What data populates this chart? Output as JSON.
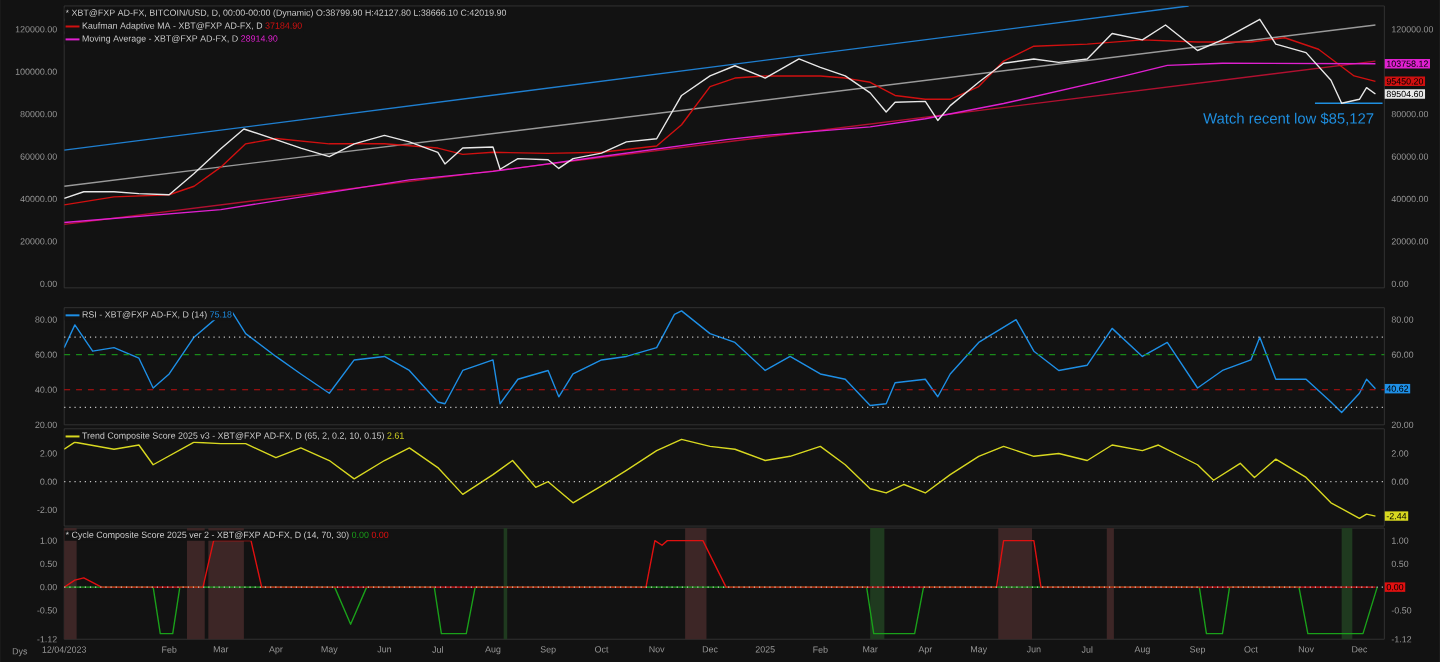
{
  "chart_data": [
    {
      "type": "line",
      "title": "* XBT@FXP AD-FX, BITCOIN/USD, D, 00:00-00:00 (Dynamic) O:38799.90 H:42127.80 L:38666.10 C:42019.90",
      "xlim": [
        "2023-12-04",
        "2025-12-15"
      ],
      "ylim": [
        -1900,
        131000
      ],
      "yticks": [
        {
          "value": 0,
          "label": "0.00"
        },
        {
          "value": 20000,
          "label": "20000.00"
        },
        {
          "value": 40000,
          "label": "40000.00"
        },
        {
          "value": 60000,
          "label": "60000.00"
        },
        {
          "value": 80000,
          "label": "80000.00"
        },
        {
          "value": 100000,
          "label": "100000.00"
        },
        {
          "value": 120000,
          "label": "120000.00"
        }
      ],
      "y2lim": [
        -1900,
        131000
      ],
      "y2ticks": [
        {
          "value": 0,
          "label": "0.00"
        },
        {
          "value": 20000,
          "label": "20000.00"
        },
        {
          "value": 40000,
          "label": "40000.00"
        },
        {
          "value": 60000,
          "label": "60000.00"
        },
        {
          "value": 80000,
          "label": "80000.00"
        },
        {
          "value": 120000,
          "label": "120000.00"
        }
      ],
      "tick_labels": "y",
      "legend": "top left",
      "series": [
        {
          "color": "#1f7fd0",
          "x": [
            "2023-12-04",
            "2025-08-27"
          ],
          "values": [
            63000,
            131000
          ]
        },
        {
          "color": "#9a9a9a",
          "x": [
            "2023-12-04",
            "2025-12-10"
          ],
          "values": [
            46000,
            122000
          ]
        },
        {
          "color": "#b01030",
          "x": [
            "2023-12-04",
            "2025-12-10"
          ],
          "values": [
            28000,
            105000
          ]
        },
        {
          "color": "#1f8fe0",
          "x": [
            "2025-11-06",
            "2025-12-14"
          ],
          "values": [
            85127,
            85127
          ]
        },
        {
          "name": "Kaufman Adaptive MA - XBT@FXP AD-FX, D",
          "color": "#d01010",
          "x": [
            "2023-12-04",
            "2024-01-01",
            "2024-02-01",
            "2024-02-15",
            "2024-03-01",
            "2024-03-15",
            "2024-04-01",
            "2024-05-01",
            "2024-06-01",
            "2024-07-01",
            "2024-07-15",
            "2024-08-01",
            "2024-09-01",
            "2024-10-01",
            "2024-11-01",
            "2024-11-15",
            "2024-12-01",
            "2024-12-15",
            "2025-01-01",
            "2025-02-01",
            "2025-02-15",
            "2025-03-01",
            "2025-03-15",
            "2025-04-01",
            "2025-04-15",
            "2025-05-01",
            "2025-05-15",
            "2025-06-01",
            "2025-07-01",
            "2025-08-01",
            "2025-09-01",
            "2025-10-01",
            "2025-10-20",
            "2025-11-08",
            "2025-11-28",
            "2025-12-10"
          ],
          "values": [
            37184.9,
            41000,
            42000,
            46000,
            55000,
            66000,
            68500,
            66000,
            66000,
            64000,
            61000,
            62000,
            61500,
            62000,
            65000,
            75000,
            93000,
            97000,
            98000,
            98000,
            97000,
            95000,
            88800,
            87000,
            87000,
            93000,
            105000,
            112000,
            113000,
            115000,
            114000,
            114000,
            116000,
            110600,
            98000,
            95450.2
          ]
        },
        {
          "name": "Moving Average - XBT@FXP AD-FX, D",
          "color": "#e020d0",
          "x": [
            "2023-12-04",
            "2024-03-01",
            "2024-06-15",
            "2024-08-01",
            "2024-10-01",
            "2024-12-10",
            "2025-01-01",
            "2025-03-01",
            "2025-04-01",
            "2025-05-15",
            "2025-07-22",
            "2025-08-15",
            "2025-09-15",
            "2025-12-10"
          ],
          "values": [
            28914.9,
            35000,
            49000,
            53000,
            60000,
            68000,
            70000,
            74000,
            77800,
            85000,
            98000,
            103000,
            104000,
            103758.12
          ]
        },
        {
          "color": "#e8e8e8",
          "x": [
            "2023-12-04",
            "2023-12-15",
            "2024-01-01",
            "2024-01-15",
            "2024-02-01",
            "2024-02-15",
            "2024-03-01",
            "2024-03-14",
            "2024-04-01",
            "2024-04-15",
            "2024-05-01",
            "2024-05-15",
            "2024-06-01",
            "2024-06-15",
            "2024-07-01",
            "2024-07-05",
            "2024-07-15",
            "2024-08-01",
            "2024-08-05",
            "2024-08-15",
            "2024-09-01",
            "2024-09-07",
            "2024-09-15",
            "2024-10-01",
            "2024-10-15",
            "2024-11-01",
            "2024-11-15",
            "2024-12-01",
            "2024-12-15",
            "2025-01-01",
            "2025-01-20",
            "2025-02-01",
            "2025-02-15",
            "2025-03-01",
            "2025-03-10",
            "2025-03-15",
            "2025-04-01",
            "2025-04-08",
            "2025-04-15",
            "2025-05-01",
            "2025-05-15",
            "2025-06-01",
            "2025-06-15",
            "2025-07-01",
            "2025-07-15",
            "2025-08-01",
            "2025-08-14",
            "2025-09-01",
            "2025-09-15",
            "2025-10-06",
            "2025-10-15",
            "2025-11-01",
            "2025-11-15",
            "2025-11-21",
            "2025-12-01",
            "2025-12-05",
            "2025-12-10"
          ],
          "values": [
            40300,
            43400,
            43400,
            42500,
            42000,
            52000,
            63700,
            73000,
            68000,
            64000,
            60000,
            66000,
            70000,
            66900,
            62000,
            56500,
            64000,
            64500,
            54000,
            59000,
            58500,
            54400,
            59000,
            61600,
            66900,
            68400,
            88800,
            98000,
            102800,
            97000,
            106000,
            102000,
            98000,
            90000,
            81000,
            85600,
            86000,
            77000,
            84000,
            95000,
            104000,
            106000,
            104400,
            106000,
            118000,
            115000,
            122000,
            110000,
            115000,
            124700,
            113000,
            109000,
            96000,
            85127,
            87000,
            92500,
            89504.6
          ]
        }
      ],
      "annotations": [
        "37184.90",
        "28914.90",
        {
          "text": "Watch recent low $85,127",
          "x": "2025-12-10",
          "y": 85127
        },
        {
          "text": "103758.12",
          "x": "2025-12-10",
          "y": 103758.12
        },
        {
          "text": "95450.20",
          "x": "2025-12-10",
          "y": 95450.2
        },
        {
          "text": "89504.60",
          "x": "2025-12-10",
          "y": 89504.6
        }
      ]
    },
    {
      "type": "line",
      "xlim": [
        "2023-12-04",
        "2025-12-15"
      ],
      "ylim": [
        20,
        86.8
      ],
      "yticks": [
        {
          "value": 20,
          "label": "20.00"
        },
        {
          "value": 40,
          "label": "40.00"
        },
        {
          "value": 60,
          "label": "60.00"
        },
        {
          "value": 80,
          "label": "80.00"
        }
      ],
      "y2lim": [
        20,
        86.8
      ],
      "y2ticks": [
        {
          "value": 20,
          "label": "20.00"
        },
        {
          "value": 60,
          "label": "60.00"
        },
        {
          "value": 80,
          "label": "80.00"
        }
      ],
      "tick_labels": "y",
      "legend": "top left",
      "ref_lines": [
        {
          "axis": "y",
          "value": 70,
          "color": "#c8c8c8",
          "line_style": "dotted"
        },
        {
          "axis": "y",
          "value": 60,
          "color": "#1a8a1a",
          "line_style": "dashed"
        },
        {
          "axis": "y",
          "value": 40,
          "color": "#c01010",
          "line_style": "dashed"
        },
        {
          "axis": "y",
          "value": 30,
          "color": "#c8c8c8",
          "line_style": "dotted"
        }
      ],
      "series": [
        {
          "name": "RSI - XBT@FXP AD-FX, D (14)",
          "color": "#1e8fe6",
          "x": [
            "2023-12-04",
            "2023-12-10",
            "2023-12-20",
            "2024-01-01",
            "2024-01-15",
            "2024-01-23",
            "2024-02-01",
            "2024-02-15",
            "2024-03-01",
            "2024-03-07",
            "2024-03-15",
            "2024-04-01",
            "2024-04-15",
            "2024-05-01",
            "2024-05-15",
            "2024-06-01",
            "2024-06-15",
            "2024-07-01",
            "2024-07-05",
            "2024-07-15",
            "2024-08-01",
            "2024-08-05",
            "2024-08-15",
            "2024-09-01",
            "2024-09-07",
            "2024-09-15",
            "2024-10-01",
            "2024-10-15",
            "2024-11-01",
            "2024-11-11",
            "2024-11-15",
            "2024-12-01",
            "2024-12-15",
            "2025-01-01",
            "2025-01-15",
            "2025-02-01",
            "2025-02-15",
            "2025-03-01",
            "2025-03-10",
            "2025-03-15",
            "2025-04-01",
            "2025-04-08",
            "2025-04-15",
            "2025-05-01",
            "2025-05-22",
            "2025-06-01",
            "2025-06-15",
            "2025-07-01",
            "2025-07-15",
            "2025-08-01",
            "2025-08-15",
            "2025-09-01",
            "2025-09-15",
            "2025-10-01",
            "2025-10-06",
            "2025-10-15",
            "2025-11-01",
            "2025-11-15",
            "2025-11-21",
            "2025-12-01",
            "2025-12-05",
            "2025-12-10"
          ],
          "values": [
            64,
            77,
            62,
            64,
            58,
            41,
            49,
            70,
            83,
            85,
            72,
            59,
            49,
            38,
            57,
            59,
            51,
            33,
            32,
            51,
            57,
            32,
            46,
            51,
            36,
            49,
            57,
            59,
            64,
            83,
            85,
            72,
            67,
            51,
            59,
            49,
            46,
            31,
            32,
            44,
            46,
            36,
            49,
            67,
            80,
            62,
            51,
            54,
            75,
            59,
            67,
            41,
            51,
            57,
            70,
            46,
            46,
            33,
            27,
            38,
            46,
            40.62
          ]
        }
      ],
      "annotations": [
        "75.18",
        {
          "text": "40.62",
          "x": "2025-12-10",
          "y": 40.62
        }
      ]
    },
    {
      "type": "line",
      "xlim": [
        "2023-12-04",
        "2025-12-15"
      ],
      "ylim": [
        -3.15,
        3.75
      ],
      "yticks": [
        {
          "value": -2,
          "label": "-2.00"
        },
        {
          "value": 0,
          "label": "0.00"
        },
        {
          "value": 2,
          "label": "2.00"
        }
      ],
      "y2lim": [
        -3.15,
        3.75
      ],
      "y2ticks": [
        {
          "value": 0,
          "label": "0.00"
        },
        {
          "value": 2,
          "label": "2.00"
        }
      ],
      "tick_labels": "y",
      "legend": "top left",
      "ref_lines": [
        {
          "axis": "y",
          "value": 0,
          "color": "#c8c8c8",
          "line_style": "dotted"
        }
      ],
      "series": [
        {
          "name": "Trend Composite Score 2025 v3 - XBT@FXP AD-FX, D (65, 2, 0.2, 10, 0.15)",
          "color": "#d8d820",
          "x": [
            "2023-12-04",
            "2023-12-10",
            "2024-01-01",
            "2024-01-15",
            "2024-01-23",
            "2024-02-15",
            "2024-03-01",
            "2024-03-15",
            "2024-04-01",
            "2024-04-15",
            "2024-05-01",
            "2024-05-15",
            "2024-06-01",
            "2024-06-15",
            "2024-07-01",
            "2024-07-15",
            "2024-08-01",
            "2024-08-12",
            "2024-08-25",
            "2024-09-01",
            "2024-09-15",
            "2024-10-01",
            "2024-10-15",
            "2024-11-01",
            "2024-11-15",
            "2024-12-01",
            "2024-12-15",
            "2025-01-01",
            "2025-01-15",
            "2025-02-01",
            "2025-02-15",
            "2025-03-01",
            "2025-03-10",
            "2025-03-20",
            "2025-04-01",
            "2025-04-15",
            "2025-05-01",
            "2025-05-15",
            "2025-06-01",
            "2025-06-15",
            "2025-07-01",
            "2025-07-15",
            "2025-08-01",
            "2025-08-10",
            "2025-09-01",
            "2025-09-10",
            "2025-09-25",
            "2025-10-03",
            "2025-10-15",
            "2025-11-01",
            "2025-11-15",
            "2025-12-01",
            "2025-12-05",
            "2025-12-10"
          ],
          "values": [
            2.3,
            2.8,
            2.3,
            2.6,
            1.2,
            2.8,
            2.7,
            2.7,
            1.7,
            2.4,
            1.5,
            0.2,
            1.5,
            2.4,
            1.0,
            -0.9,
            0.5,
            1.5,
            -0.4,
            0.0,
            -1.5,
            -0.3,
            0.8,
            2.2,
            3.0,
            2.5,
            2.3,
            1.5,
            1.8,
            2.5,
            1.2,
            -0.5,
            -0.8,
            -0.2,
            -0.8,
            0.5,
            1.8,
            2.5,
            1.8,
            2.0,
            1.5,
            2.6,
            2.2,
            2.6,
            1.2,
            0.1,
            1.3,
            0.3,
            1.6,
            0.3,
            -1.5,
            -2.6,
            -2.3,
            -2.44
          ]
        }
      ],
      "annotations": [
        "2.61",
        {
          "text": "-2.44",
          "x": "2025-12-10",
          "y": -2.44
        }
      ]
    },
    {
      "type": "line",
      "title": "* Cycle Composite Score 2025 ver 2 - XBT@FXP AD-FX, D (14, 70, 30)",
      "xlabel": "Dys",
      "xlim": [
        "2023-12-04",
        "2025-12-15"
      ],
      "ylim": [
        -1.12,
        1.27
      ],
      "xticks": [
        {
          "value": "2023-12-04",
          "label": "12/04/2023"
        },
        {
          "value": "2024-02-01",
          "label": "Feb"
        },
        {
          "value": "2024-03-01",
          "label": "Mar"
        },
        {
          "value": "2024-04-01",
          "label": "Apr"
        },
        {
          "value": "2024-05-01",
          "label": "May"
        },
        {
          "value": "2024-06-01",
          "label": "Jun"
        },
        {
          "value": "2024-07-01",
          "label": "Jul"
        },
        {
          "value": "2024-08-01",
          "label": "Aug"
        },
        {
          "value": "2024-09-01",
          "label": "Sep"
        },
        {
          "value": "2024-10-01",
          "label": "Oct"
        },
        {
          "value": "2024-11-01",
          "label": "Nov"
        },
        {
          "value": "2024-12-01",
          "label": "Dec"
        },
        {
          "value": "2025-01-01",
          "label": "2025"
        },
        {
          "value": "2025-02-01",
          "label": "Feb"
        },
        {
          "value": "2025-03-01",
          "label": "Mar"
        },
        {
          "value": "2025-04-01",
          "label": "Apr"
        },
        {
          "value": "2025-05-01",
          "label": "May"
        },
        {
          "value": "2025-06-01",
          "label": "Jun"
        },
        {
          "value": "2025-07-01",
          "label": "Jul"
        },
        {
          "value": "2025-08-01",
          "label": "Aug"
        },
        {
          "value": "2025-09-01",
          "label": "Sep"
        },
        {
          "value": "2025-10-01",
          "label": "Oct"
        },
        {
          "value": "2025-11-01",
          "label": "Nov"
        },
        {
          "value": "2025-12-01",
          "label": "Dec"
        }
      ],
      "yticks": [
        {
          "value": -1.12,
          "label": "-1.12"
        },
        {
          "value": -0.5,
          "label": "-0.50"
        },
        {
          "value": 0,
          "label": "0.00"
        },
        {
          "value": 0.5,
          "label": "0.50"
        },
        {
          "value": 1,
          "label": "1.00"
        }
      ],
      "y2lim": [
        -1.12,
        1.27
      ],
      "y2ticks": [
        {
          "value": -1.12,
          "label": "-1.12"
        },
        {
          "value": -0.5,
          "label": "-0.50"
        },
        {
          "value": 0.5,
          "label": "0.50"
        },
        {
          "value": 1,
          "label": "1.00"
        }
      ],
      "bands": [
        {
          "axis": "x",
          "from": "2023-12-04",
          "to": "2023-12-11",
          "color": "#3d2626"
        },
        {
          "axis": "x",
          "from": "2024-02-11",
          "to": "2024-02-21",
          "color": "#3d2626"
        },
        {
          "axis": "x",
          "from": "2024-02-23",
          "to": "2024-03-14",
          "color": "#3d2626"
        },
        {
          "axis": "x",
          "from": "2024-11-17",
          "to": "2024-11-29",
          "color": "#3d2626"
        },
        {
          "axis": "x",
          "from": "2025-05-12",
          "to": "2025-05-31",
          "color": "#3d2626"
        },
        {
          "axis": "x",
          "from": "2025-07-12",
          "to": "2025-07-16",
          "color": "#3d2626"
        },
        {
          "axis": "x",
          "from": "2024-08-07",
          "to": "2024-08-09",
          "color": "#1f3a1f"
        },
        {
          "axis": "x",
          "from": "2025-03-01",
          "to": "2025-03-09",
          "color": "#1f3a1f"
        },
        {
          "axis": "x",
          "from": "2025-11-21",
          "to": "2025-11-27",
          "color": "#1f3a1f"
        }
      ],
      "ref_lines": [
        {
          "axis": "y",
          "value": 0,
          "color": "#c8c8c8",
          "line_style": "dotted"
        }
      ],
      "series": [
        {
          "color": "#1aa01a",
          "x": [
            "2023-12-04",
            "2024-01-23",
            "2024-01-27",
            "2024-02-03",
            "2024-02-07",
            "2024-05-04",
            "2024-05-13",
            "2024-05-22",
            "2024-06-29",
            "2024-07-03",
            "2024-07-17",
            "2024-07-22",
            "2025-02-27",
            "2025-03-03",
            "2025-03-26",
            "2025-03-31",
            "2025-09-02",
            "2025-09-06",
            "2025-09-15",
            "2025-09-19",
            "2025-10-28",
            "2025-11-02",
            "2025-12-03",
            "2025-12-11"
          ],
          "values": [
            0,
            0,
            -1.0,
            -1.0,
            0,
            0,
            -0.8,
            0,
            0,
            -1.0,
            -1.0,
            0,
            0,
            -1.0,
            -1.0,
            0,
            0,
            -1.0,
            -1.0,
            0,
            0,
            -1.0,
            -1.0,
            0
          ]
        },
        {
          "color": "#e01010",
          "x": [
            "2023-12-04",
            "2023-12-10",
            "2023-12-15",
            "2023-12-20",
            "2023-12-25",
            "2024-02-20",
            "2024-02-26",
            "2024-03-18",
            "2024-03-24",
            "2024-10-26",
            "2024-10-31",
            "2024-11-04",
            "2024-11-07",
            "2024-11-27",
            "2024-12-10",
            "2025-05-11",
            "2025-05-15",
            "2025-06-01",
            "2025-06-05",
            "2025-12-10"
          ],
          "values": [
            0,
            0.15,
            0.2,
            0.1,
            0,
            0,
            1.0,
            1.0,
            0,
            0,
            1.0,
            0.9,
            1.0,
            1.0,
            0,
            0,
            1.0,
            1.0,
            0,
            0
          ]
        }
      ],
      "annotations": [
        "0.00",
        "0.00",
        {
          "text": "0.00",
          "x": "2025-12-10",
          "y": 0
        }
      ]
    }
  ]
}
